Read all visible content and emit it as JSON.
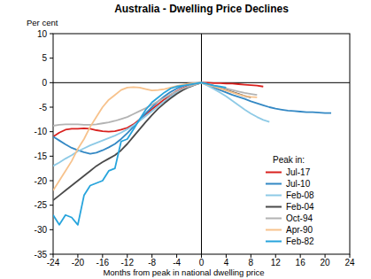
{
  "chart_data": {
    "type": "line",
    "title": "Australia - Dwelling Price Declines",
    "x_label": "Months from peak in national dwelling price",
    "y_label": "Per cent",
    "legend_title": "Peak in:",
    "legend": "lower right",
    "grid": false,
    "xlim": [
      -24,
      24
    ],
    "xticks": [
      -24,
      -20,
      -16,
      -12,
      -8,
      -4,
      0,
      4,
      8,
      12,
      16,
      20,
      24
    ],
    "ylim": [
      -35,
      10
    ],
    "yticks": [
      -35,
      -30,
      -25,
      -20,
      -15,
      -10,
      -5,
      0,
      5,
      10
    ],
    "x": [
      -24,
      -23,
      -22,
      -21,
      -20,
      -19,
      -18,
      -17,
      -16,
      -15,
      -14,
      -13,
      -12,
      -11,
      -10,
      -9,
      -8,
      -7,
      -6,
      -5,
      -4,
      -3,
      -2,
      -1,
      0,
      1,
      2,
      3,
      4,
      5,
      6,
      7,
      8,
      9,
      10,
      11,
      12,
      13,
      14,
      15,
      16,
      17,
      18,
      19,
      20,
      21
    ],
    "series": [
      {
        "name": "Jul-17",
        "color": "#d9211e",
        "values": [
          -11,
          -10.2,
          -9.6,
          -9.4,
          -9.4,
          -9.3,
          -9.4,
          -9.7,
          -9.9,
          -10,
          -9.9,
          -9.6,
          -9.2,
          -8.5,
          -7.5,
          -6.5,
          -5.4,
          -4.4,
          -3.4,
          -2.5,
          -1.7,
          -1.1,
          -0.6,
          -0.2,
          0,
          0,
          -0.1,
          -0.1,
          -0.2,
          -0.2,
          -0.3,
          -0.4,
          -0.5,
          -0.6,
          -0.8,
          null,
          null,
          null,
          null,
          null,
          null,
          null,
          null,
          null,
          null,
          null
        ]
      },
      {
        "name": "Jul-10",
        "color": "#3388c4",
        "values": [
          -11,
          -11.8,
          -12.6,
          -13.3,
          -13.8,
          -14.2,
          -14.5,
          -14.3,
          -13.8,
          -13.2,
          -12.5,
          -11.5,
          -10.3,
          -9,
          -7.6,
          -6.2,
          -5,
          -3.8,
          -2.8,
          -1.9,
          -1.2,
          -0.7,
          -0.3,
          -0.1,
          0,
          -0.5,
          -1,
          -1.5,
          -2,
          -2.5,
          -2.9,
          -3.3,
          -3.8,
          -4.2,
          -4.6,
          -5,
          -5.3,
          -5.5,
          -5.7,
          -5.8,
          -5.9,
          -6,
          -6,
          -6.1,
          -6.2,
          -6.2
        ]
      },
      {
        "name": "Feb-08",
        "color": "#8ecae6",
        "values": [
          -17,
          -16.3,
          -15.5,
          -14.8,
          -14,
          -13.4,
          -12.8,
          -12.3,
          -11.8,
          -11.3,
          -10.8,
          -10.2,
          -9.5,
          -8.7,
          -7.8,
          -6.8,
          -5.8,
          -4.8,
          -3.8,
          -2.9,
          -2,
          -1.3,
          -0.7,
          -0.3,
          0,
          -0.6,
          -1.3,
          -2,
          -2.8,
          -3.7,
          -4.6,
          -5.5,
          -6.3,
          -7,
          -7.6,
          -8,
          null,
          null,
          null,
          null,
          null,
          null,
          null,
          null,
          null,
          null
        ]
      },
      {
        "name": "Feb-04",
        "color": "#4a4a4a",
        "values": [
          -24,
          -23,
          -22,
          -21,
          -20,
          -19,
          -18,
          -17,
          -16.2,
          -15.5,
          -14.8,
          -13.8,
          -12.5,
          -11,
          -9.5,
          -8,
          -6.6,
          -5.3,
          -4.2,
          -3.2,
          -2.3,
          -1.5,
          -0.9,
          -0.4,
          0,
          -0.3,
          -0.7,
          -1.1,
          -1.5,
          -1.9,
          -2.3,
          -2.7,
          -3,
          null,
          null,
          null,
          null,
          null,
          null,
          null,
          null,
          null,
          null,
          null,
          null,
          null
        ]
      },
      {
        "name": "Oct-94",
        "color": "#b3b3b3",
        "values": [
          -8.8,
          -8.6,
          -8.5,
          -8.5,
          -8.5,
          -8.6,
          -8.6,
          -8.5,
          -8.3,
          -8.1,
          -7.8,
          -7.4,
          -7,
          -6.4,
          -5.8,
          -5.2,
          -4.5,
          -3.8,
          -3.1,
          -2.4,
          -1.8,
          -1.2,
          -0.8,
          -0.4,
          0,
          -0.3,
          -0.6,
          -0.9,
          -1.2,
          -1.5,
          -1.8,
          -2.1,
          -2.3,
          -2.5,
          null,
          null,
          null,
          null,
          null,
          null,
          null,
          null,
          null,
          null,
          null,
          null
        ]
      },
      {
        "name": "Apr-90",
        "color": "#f7c28c",
        "values": [
          -22,
          -20,
          -18,
          -16,
          -13.5,
          -11.5,
          -9,
          -7,
          -5,
          -3.5,
          -2.5,
          -1.5,
          -1,
          -0.9,
          -1,
          -1.3,
          -1.6,
          -1.5,
          -1.3,
          -1,
          -0.7,
          -0.4,
          -0.2,
          -0.1,
          0,
          -0.4,
          -0.8,
          -1.2,
          -1.6,
          -2,
          -2.4,
          -2.7,
          -2.9,
          -3,
          null,
          null,
          null,
          null,
          null,
          null,
          null,
          null,
          null,
          null,
          null,
          null
        ]
      },
      {
        "name": "Feb-82",
        "color": "#27a4dc",
        "values": [
          -27,
          -29,
          -27,
          -27.5,
          -29,
          -23,
          -21,
          -20.5,
          -20,
          -18,
          -17.5,
          -12,
          -11.5,
          -9.5,
          -7.5,
          -5.5,
          -4,
          -3,
          -2,
          -1.2,
          -0.8,
          -0.6,
          -0.4,
          -0.2,
          0,
          -0.3,
          -0.6,
          -0.8,
          -1,
          null,
          null,
          null,
          null,
          null,
          null,
          null,
          null,
          null,
          null,
          null,
          null,
          null,
          null,
          null,
          null,
          null
        ]
      }
    ]
  }
}
